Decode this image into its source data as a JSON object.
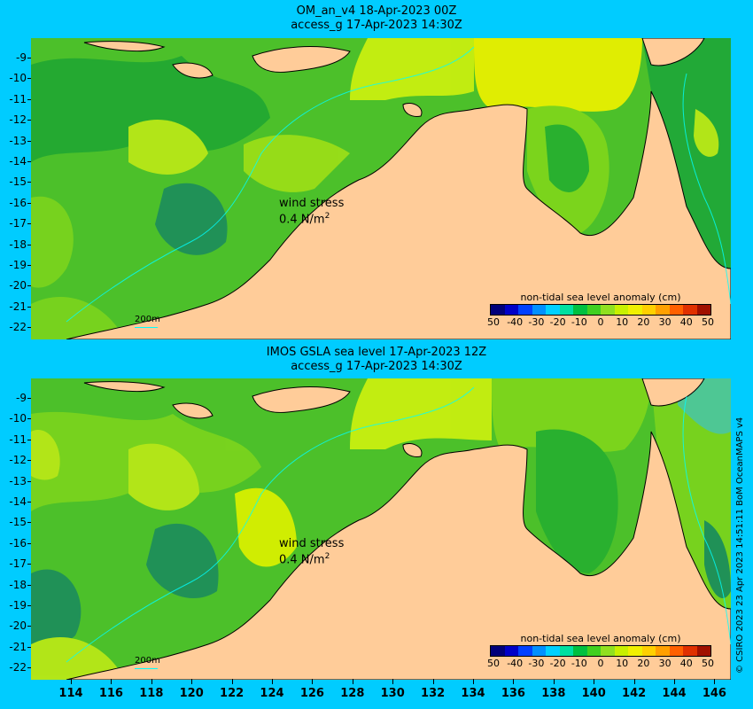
{
  "panels": [
    {
      "title_line1": "OM_an_v4  18-Apr-2023 00Z",
      "title_line2": "access_g 17-Apr-2023 14:30Z",
      "wind_label_line1": "wind stress",
      "wind_label_line2": "0.4 N/m",
      "wind_label_sup": "2",
      "legend_title": "non-tidal sea level anomaly (cm)",
      "scale_label": "200m"
    },
    {
      "title_line1": "IMOS GSLA sea level  17-Apr-2023 12Z",
      "title_line2": "access_g 17-Apr-2023 14:30Z",
      "wind_label_line1": "wind stress",
      "wind_label_line2": "0.4 N/m",
      "wind_label_sup": "2",
      "legend_title": "non-tidal sea level anomaly (cm)",
      "scale_label": "200m"
    }
  ],
  "lat_labels": [
    "-9",
    "-10",
    "-11",
    "-12",
    "-13",
    "-14",
    "-15",
    "-16",
    "-17",
    "-18",
    "-19",
    "-20",
    "-21",
    "-22"
  ],
  "lon_labels": [
    "114",
    "116",
    "118",
    "120",
    "122",
    "124",
    "126",
    "128",
    "130",
    "132",
    "134",
    "136",
    "138",
    "140",
    "142",
    "144",
    "146"
  ],
  "legend_ticks": [
    "50",
    "-40",
    "-30",
    "-20",
    "-10",
    "0",
    "10",
    "20",
    "30",
    "40",
    "50"
  ],
  "legend_colors": [
    "#00007a",
    "#0000c8",
    "#0040ff",
    "#0090ff",
    "#00d0ff",
    "#00e0a0",
    "#00c040",
    "#40d020",
    "#90e020",
    "#c8f000",
    "#f0f000",
    "#ffd000",
    "#ffa000",
    "#ff6000",
    "#e03000",
    "#a01000"
  ],
  "credit": "© CSIRO 2023   23 Apr 2023 14:51:11 BoM OceanMAPS v4",
  "colors": {
    "land": "#ffcc99",
    "ocean_base": "#4cc02a",
    "frame": "#00ccff"
  }
}
